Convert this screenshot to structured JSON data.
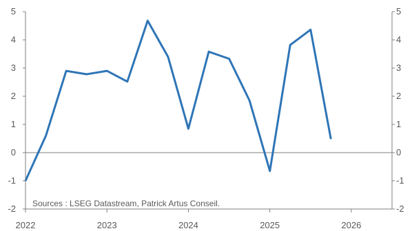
{
  "source_note": "Sources : LSEG Datastream, Patrick Artus Conseil.",
  "chart_data": {
    "type": "line",
    "title": "",
    "xlabel": "",
    "ylabel": "",
    "ylim": [
      -2,
      5
    ],
    "xlim": [
      "2022",
      "2026.5"
    ],
    "y_ticks": [
      "-2",
      "-1",
      "0",
      "1",
      "2",
      "3",
      "4",
      "5"
    ],
    "x_ticks": [
      "2022",
      "2023",
      "2024",
      "2025",
      "2026"
    ],
    "grid": false,
    "legend": "none",
    "series": [
      {
        "color": "#2e75b6",
        "x": [
          "2022-01",
          "2022-04",
          "2022-07",
          "2022-10",
          "2023-01",
          "2023-04",
          "2023-07",
          "2023-10",
          "2024-01",
          "2024-04",
          "2024-07",
          "2024-10",
          "2025-01",
          "2025-04",
          "2025-07",
          "2025-10"
        ],
        "values": [
          -1.0,
          0.6,
          2.9,
          2.78,
          2.9,
          2.52,
          4.68,
          3.4,
          0.85,
          3.58,
          3.33,
          1.85,
          -0.65,
          3.82,
          4.36,
          0.48
        ]
      }
    ]
  }
}
